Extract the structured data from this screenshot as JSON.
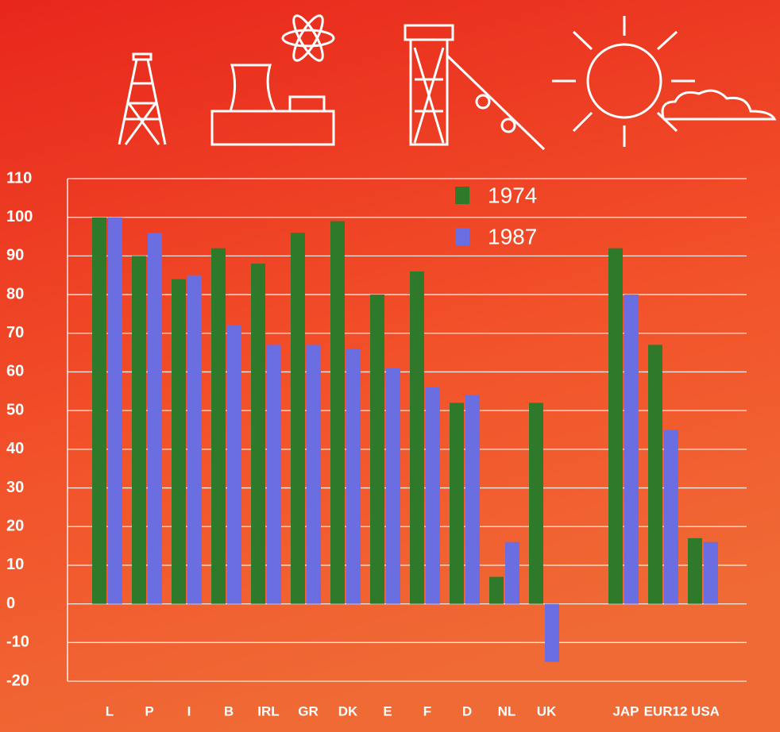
{
  "chart_data": {
    "type": "bar",
    "categories": [
      "L",
      "P",
      "I",
      "B",
      "IRL",
      "GR",
      "DK",
      "E",
      "F",
      "D",
      "NL",
      "UK",
      null,
      "JAP",
      "EUR12",
      "USA"
    ],
    "series": [
      {
        "name": "1974",
        "color": "#2f7a2a",
        "values": [
          100,
          90,
          84,
          92,
          88,
          96,
          99,
          80,
          86,
          52,
          7,
          52,
          null,
          92,
          67,
          17
        ]
      },
      {
        "name": "1987",
        "color": "#6a6ee0",
        "values": [
          100,
          96,
          85,
          72,
          67,
          67,
          66,
          61,
          56,
          54,
          16,
          -15,
          null,
          80,
          45,
          16
        ]
      }
    ],
    "ylim": [
      -20,
      110
    ],
    "yticks": [
      110,
      100,
      90,
      80,
      70,
      60,
      50,
      40,
      30,
      20,
      10,
      0,
      -10,
      -20
    ],
    "grid": true
  }
}
